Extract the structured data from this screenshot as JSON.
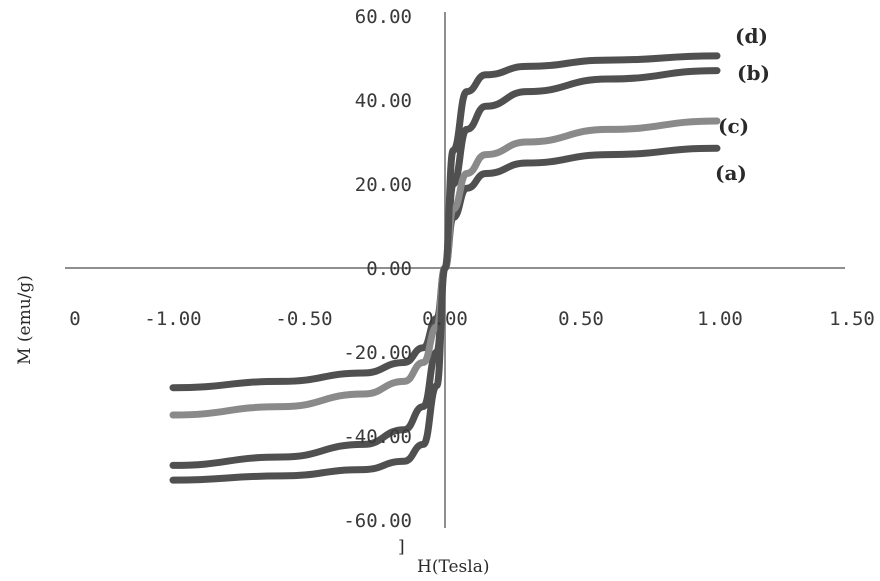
{
  "chart_data": {
    "type": "line",
    "title": "",
    "xlabel": "H(Tesla)",
    "ylabel": "M (emu/g)",
    "xlim": [
      -1.5,
      1.5
    ],
    "ylim": [
      -60,
      60
    ],
    "x_tick_labels": [
      "0",
      "-1.00",
      "-0.50",
      "0.00",
      "0.50",
      "1.00",
      "1.50"
    ],
    "y_tick_labels": [
      "60.00",
      "40.00",
      "20.00",
      "0.00",
      "-20.00",
      "-40.00",
      "-60.00"
    ],
    "grid": false,
    "stray_mark": "]",
    "series": [
      {
        "name": "(a)",
        "color": "#505050",
        "x": [
          -1.0,
          -0.6,
          -0.3,
          -0.15,
          -0.08,
          -0.03,
          0.0,
          0.03,
          0.08,
          0.15,
          0.3,
          0.6,
          1.0
        ],
        "y": [
          -28.5,
          -27.0,
          -25.0,
          -22.5,
          -19.0,
          -12.0,
          0.0,
          12.0,
          19.0,
          22.5,
          25.0,
          27.0,
          28.5
        ]
      },
      {
        "name": "(b)",
        "color": "#505050",
        "x": [
          -1.0,
          -0.6,
          -0.3,
          -0.15,
          -0.08,
          -0.03,
          0.0,
          0.03,
          0.08,
          0.15,
          0.3,
          0.6,
          1.0
        ],
        "y": [
          -47.0,
          -45.0,
          -42.0,
          -38.5,
          -33.0,
          -20.0,
          0.0,
          20.0,
          33.0,
          38.5,
          42.0,
          45.0,
          47.0
        ]
      },
      {
        "name": "(c)",
        "color": "#8a8a8a",
        "x": [
          -1.0,
          -0.6,
          -0.3,
          -0.15,
          -0.08,
          -0.03,
          0.0,
          0.03,
          0.08,
          0.15,
          0.3,
          0.6,
          1.0
        ],
        "y": [
          -35.0,
          -33.0,
          -30.0,
          -27.0,
          -22.5,
          -14.0,
          0.0,
          14.0,
          22.5,
          27.0,
          30.0,
          33.0,
          35.0
        ]
      },
      {
        "name": "(d)",
        "color": "#505050",
        "x": [
          -1.0,
          -0.6,
          -0.3,
          -0.15,
          -0.08,
          -0.03,
          0.0,
          0.03,
          0.08,
          0.15,
          0.3,
          0.6,
          1.0
        ],
        "y": [
          -50.5,
          -49.5,
          -48.0,
          -46.0,
          -42.0,
          -28.0,
          0.0,
          28.0,
          42.0,
          46.0,
          48.0,
          49.5,
          50.5
        ]
      }
    ]
  }
}
